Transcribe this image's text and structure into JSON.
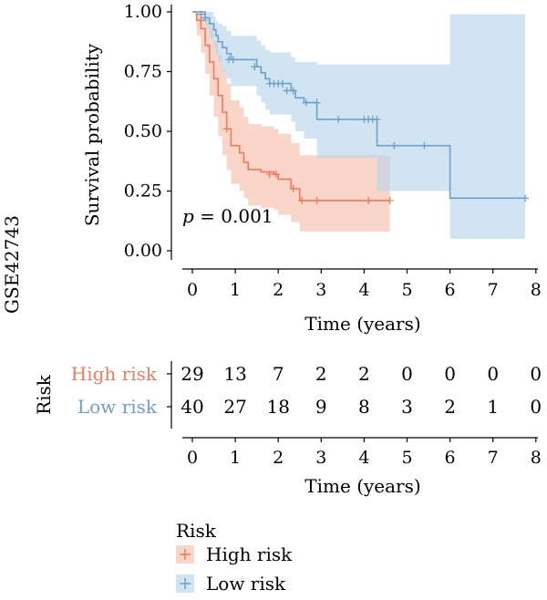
{
  "chart_data": {
    "type": "line",
    "subtype": "kaplan-meier",
    "side_label": "GSE42743",
    "annotation": "p = 0.001",
    "annotation_italic": "p",
    "annotation_rest": " = 0.001",
    "xlabel": "Time (years)",
    "ylabel": "Survival probability",
    "xlim": [
      0,
      8
    ],
    "ylim": [
      0,
      1
    ],
    "x_ticks": [
      "0",
      "1",
      "2",
      "3",
      "4",
      "5",
      "6",
      "7",
      "8"
    ],
    "y_ticks": [
      "0.00",
      "0.25",
      "0.50",
      "0.75",
      "1.00"
    ],
    "grid": false,
    "series": [
      {
        "name": "High risk",
        "color": "#EE7B5A",
        "fill": "#F8BFAD",
        "steps": [
          [
            0,
            1.0
          ],
          [
            0.1,
            0.965
          ],
          [
            0.2,
            0.93
          ],
          [
            0.3,
            0.86
          ],
          [
            0.4,
            0.79
          ],
          [
            0.5,
            0.72
          ],
          [
            0.6,
            0.65
          ],
          [
            0.7,
            0.58
          ],
          [
            0.8,
            0.51
          ],
          [
            0.9,
            0.44
          ],
          [
            1.1,
            0.41
          ],
          [
            1.2,
            0.37
          ],
          [
            1.3,
            0.34
          ],
          [
            1.6,
            0.33
          ],
          [
            1.9,
            0.32
          ],
          [
            2.0,
            0.3
          ],
          [
            2.3,
            0.26
          ],
          [
            2.5,
            0.21
          ],
          [
            4.6,
            0.21
          ]
        ],
        "ci_lower": [
          [
            0,
            1.0
          ],
          [
            0.1,
            0.9
          ],
          [
            0.2,
            0.83
          ],
          [
            0.3,
            0.74
          ],
          [
            0.4,
            0.65
          ],
          [
            0.5,
            0.56
          ],
          [
            0.6,
            0.48
          ],
          [
            0.7,
            0.4
          ],
          [
            0.8,
            0.34
          ],
          [
            0.9,
            0.28
          ],
          [
            1.1,
            0.25
          ],
          [
            1.2,
            0.22
          ],
          [
            1.3,
            0.19
          ],
          [
            1.6,
            0.18
          ],
          [
            1.9,
            0.17
          ],
          [
            2.0,
            0.15
          ],
          [
            2.3,
            0.12
          ],
          [
            2.5,
            0.08
          ],
          [
            4.6,
            0.08
          ]
        ],
        "ci_upper": [
          [
            0,
            1.0
          ],
          [
            0.1,
            1.0
          ],
          [
            0.2,
            1.0
          ],
          [
            0.3,
            0.97
          ],
          [
            0.4,
            0.94
          ],
          [
            0.5,
            0.88
          ],
          [
            0.6,
            0.82
          ],
          [
            0.7,
            0.76
          ],
          [
            0.8,
            0.7
          ],
          [
            0.9,
            0.63
          ],
          [
            1.1,
            0.6
          ],
          [
            1.2,
            0.56
          ],
          [
            1.3,
            0.53
          ],
          [
            1.6,
            0.52
          ],
          [
            1.9,
            0.51
          ],
          [
            2.0,
            0.49
          ],
          [
            2.3,
            0.45
          ],
          [
            2.5,
            0.4
          ],
          [
            2.9,
            0.4
          ],
          [
            2.9,
            0.4
          ],
          [
            4.6,
            0.4
          ]
        ],
        "censors": [
          [
            0.2,
            0.965
          ],
          [
            0.8,
            0.51
          ],
          [
            1.8,
            0.32
          ],
          [
            1.95,
            0.32
          ],
          [
            2.35,
            0.26
          ],
          [
            2.55,
            0.21
          ],
          [
            2.9,
            0.21
          ],
          [
            4.1,
            0.21
          ],
          [
            4.6,
            0.21
          ]
        ]
      },
      {
        "name": "Low risk",
        "color": "#6BA1CB",
        "fill": "#B9D6EB",
        "steps": [
          [
            0,
            1.0
          ],
          [
            0.3,
            0.975
          ],
          [
            0.4,
            0.95
          ],
          [
            0.5,
            0.925
          ],
          [
            0.55,
            0.9
          ],
          [
            0.6,
            0.875
          ],
          [
            0.7,
            0.85
          ],
          [
            0.8,
            0.825
          ],
          [
            0.9,
            0.8
          ],
          [
            1.5,
            0.77
          ],
          [
            1.6,
            0.745
          ],
          [
            1.7,
            0.72
          ],
          [
            1.8,
            0.7
          ],
          [
            2.3,
            0.67
          ],
          [
            2.4,
            0.64
          ],
          [
            2.6,
            0.62
          ],
          [
            2.9,
            0.55
          ],
          [
            4.3,
            0.44
          ],
          [
            6.0,
            0.22
          ],
          [
            7.75,
            0.22
          ]
        ],
        "ci_lower": [
          [
            0,
            1.0
          ],
          [
            0.3,
            0.93
          ],
          [
            0.4,
            0.89
          ],
          [
            0.5,
            0.85
          ],
          [
            0.55,
            0.82
          ],
          [
            0.6,
            0.79
          ],
          [
            0.7,
            0.75
          ],
          [
            0.8,
            0.72
          ],
          [
            0.9,
            0.69
          ],
          [
            1.5,
            0.65
          ],
          [
            1.6,
            0.62
          ],
          [
            1.7,
            0.59
          ],
          [
            1.8,
            0.57
          ],
          [
            2.3,
            0.54
          ],
          [
            2.4,
            0.5
          ],
          [
            2.6,
            0.47
          ],
          [
            2.9,
            0.39
          ],
          [
            4.3,
            0.25
          ],
          [
            6.0,
            0.05
          ],
          [
            7.75,
            0.05
          ]
        ],
        "ci_upper": [
          [
            0,
            1.0
          ],
          [
            0.3,
            1.0
          ],
          [
            0.4,
            1.0
          ],
          [
            0.5,
            0.98
          ],
          [
            0.55,
            0.96
          ],
          [
            0.6,
            0.95
          ],
          [
            0.7,
            0.94
          ],
          [
            0.8,
            0.92
          ],
          [
            0.9,
            0.9
          ],
          [
            1.5,
            0.88
          ],
          [
            1.6,
            0.86
          ],
          [
            1.7,
            0.84
          ],
          [
            1.8,
            0.83
          ],
          [
            2.3,
            0.81
          ],
          [
            2.4,
            0.79
          ],
          [
            2.6,
            0.79
          ],
          [
            2.9,
            0.78
          ],
          [
            4.3,
            0.78
          ],
          [
            6.0,
            0.99
          ],
          [
            7.75,
            0.99
          ]
        ],
        "censors": [
          [
            0.2,
            0.99
          ],
          [
            0.3,
            0.975
          ],
          [
            0.85,
            0.8
          ],
          [
            0.95,
            0.8
          ],
          [
            1.45,
            0.77
          ],
          [
            1.8,
            0.7
          ],
          [
            1.9,
            0.7
          ],
          [
            2.0,
            0.7
          ],
          [
            2.1,
            0.7
          ],
          [
            2.2,
            0.67
          ],
          [
            2.35,
            0.67
          ],
          [
            2.65,
            0.62
          ],
          [
            2.9,
            0.62
          ],
          [
            3.4,
            0.55
          ],
          [
            4.0,
            0.55
          ],
          [
            4.1,
            0.55
          ],
          [
            4.2,
            0.55
          ],
          [
            4.3,
            0.55
          ],
          [
            4.7,
            0.44
          ],
          [
            5.4,
            0.44
          ],
          [
            7.75,
            0.22
          ]
        ]
      }
    ],
    "risk_table": {
      "title": "Risk",
      "xlabel": "Time (years)",
      "times": [
        "0",
        "1",
        "2",
        "3",
        "4",
        "5",
        "6",
        "7",
        "8"
      ],
      "rows": [
        {
          "label": "High risk",
          "color": "#EE7B5A",
          "counts": [
            "29",
            "13",
            "7",
            "2",
            "2",
            "0",
            "0",
            "0",
            "0"
          ]
        },
        {
          "label": "Low risk",
          "color": "#6BA1CB",
          "counts": [
            "40",
            "27",
            "18",
            "9",
            "8",
            "3",
            "2",
            "1",
            "0"
          ]
        }
      ]
    },
    "legend": {
      "title": "Risk",
      "placement": "bottom-left",
      "items": [
        {
          "label": "High risk",
          "color": "#EE7B5A",
          "fill": "#F8BFAD"
        },
        {
          "label": "Low risk",
          "color": "#6BA1CB",
          "fill": "#B9D6EB"
        }
      ]
    }
  }
}
